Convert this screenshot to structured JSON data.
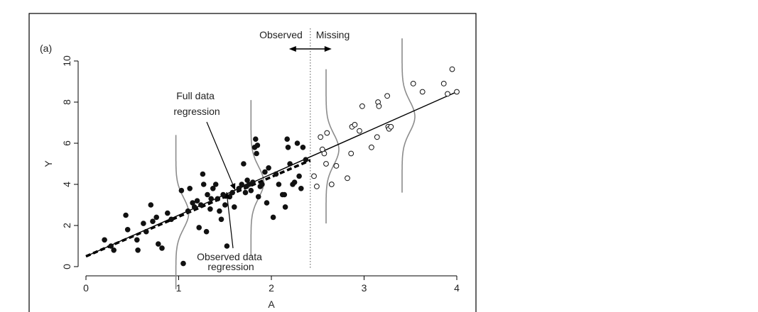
{
  "chart_data": {
    "type": "scatter",
    "panel_label": "(a)",
    "ylabel": "Y",
    "xlabel": "A",
    "xlim": [
      -0.05,
      4.1
    ],
    "ylim": [
      -0.25,
      10.2
    ],
    "x_ticks": [
      0,
      1,
      2,
      3,
      4
    ],
    "y_ticks": [
      0,
      2,
      4,
      6,
      8,
      10
    ],
    "threshold_x": 2.42,
    "region_labels": {
      "observed": "Observed",
      "missing": "Missing"
    },
    "annotations": {
      "full": [
        "Full data",
        "regression"
      ],
      "observed": [
        "Observed data",
        "regression"
      ]
    },
    "full_regression": {
      "intercept": 0.5,
      "slope": 2.0,
      "x_range": [
        0,
        4
      ]
    },
    "observed_regression": {
      "intercept": 0.5,
      "slope": 1.93,
      "x_range": [
        0,
        2.42
      ]
    },
    "density_curves": [
      {
        "x": 0.97,
        "mu": 2.6,
        "sigma": 0.75,
        "y_range": [
          -1.1,
          6.4
        ]
      },
      {
        "x": 1.78,
        "mu": 4.1,
        "sigma": 0.75,
        "y_range": [
          0.5,
          8.1
        ]
      },
      {
        "x": 2.59,
        "mu": 5.7,
        "sigma": 0.75,
        "y_range": [
          2.1,
          9.6
        ]
      },
      {
        "x": 3.41,
        "mu": 7.3,
        "sigma": 0.75,
        "y_range": [
          3.6,
          11.1
        ]
      }
    ],
    "series": [
      {
        "marker": "filled",
        "points": [
          [
            0.2,
            1.3
          ],
          [
            0.27,
            1.0
          ],
          [
            0.3,
            0.8
          ],
          [
            0.43,
            2.5
          ],
          [
            0.45,
            1.8
          ],
          [
            0.55,
            1.3
          ],
          [
            0.56,
            0.8
          ],
          [
            0.62,
            2.1
          ],
          [
            0.65,
            1.7
          ],
          [
            0.7,
            3.0
          ],
          [
            0.72,
            2.2
          ],
          [
            0.76,
            2.4
          ],
          [
            0.78,
            1.1
          ],
          [
            0.82,
            0.9
          ],
          [
            0.88,
            2.6
          ],
          [
            0.92,
            2.3
          ],
          [
            1.03,
            3.7
          ],
          [
            1.05,
            0.15
          ],
          [
            1.1,
            2.7
          ],
          [
            1.12,
            3.8
          ],
          [
            1.15,
            3.1
          ],
          [
            1.17,
            2.9
          ],
          [
            1.2,
            3.2
          ],
          [
            1.22,
            1.9
          ],
          [
            1.24,
            3.0
          ],
          [
            1.26,
            4.5
          ],
          [
            1.27,
            4.0
          ],
          [
            1.3,
            1.7
          ],
          [
            1.31,
            3.5
          ],
          [
            1.34,
            2.8
          ],
          [
            1.35,
            3.3
          ],
          [
            1.37,
            3.8
          ],
          [
            1.4,
            4.0
          ],
          [
            1.42,
            3.3
          ],
          [
            1.44,
            2.7
          ],
          [
            1.46,
            2.3
          ],
          [
            1.48,
            3.5
          ],
          [
            1.5,
            3.0
          ],
          [
            1.52,
            1.0
          ],
          [
            1.55,
            3.4
          ],
          [
            1.58,
            3.6
          ],
          [
            1.6,
            2.9
          ],
          [
            1.65,
            3.8
          ],
          [
            1.68,
            4.0
          ],
          [
            1.7,
            5.0
          ],
          [
            1.72,
            3.6
          ],
          [
            1.73,
            3.9
          ],
          [
            1.74,
            4.2
          ],
          [
            1.76,
            4.0
          ],
          [
            1.78,
            3.7
          ],
          [
            1.8,
            4.1
          ],
          [
            1.82,
            5.8
          ],
          [
            1.83,
            6.2
          ],
          [
            1.84,
            5.5
          ],
          [
            1.85,
            5.9
          ],
          [
            1.86,
            3.4
          ],
          [
            1.88,
            3.9
          ],
          [
            1.9,
            4.0
          ],
          [
            1.93,
            4.6
          ],
          [
            1.95,
            3.1
          ],
          [
            1.97,
            4.8
          ],
          [
            2.02,
            2.4
          ],
          [
            2.05,
            4.5
          ],
          [
            2.08,
            4.0
          ],
          [
            2.12,
            3.5
          ],
          [
            2.14,
            3.5
          ],
          [
            2.15,
            2.9
          ],
          [
            2.17,
            6.2
          ],
          [
            2.18,
            5.8
          ],
          [
            2.2,
            5.0
          ],
          [
            2.23,
            4.0
          ],
          [
            2.25,
            4.1
          ],
          [
            2.28,
            6.0
          ],
          [
            2.3,
            4.4
          ],
          [
            2.32,
            3.8
          ],
          [
            2.34,
            5.8
          ],
          [
            2.37,
            5.2
          ]
        ]
      },
      {
        "marker": "open",
        "points": [
          [
            2.46,
            4.4
          ],
          [
            2.49,
            3.9
          ],
          [
            2.53,
            6.3
          ],
          [
            2.55,
            5.7
          ],
          [
            2.57,
            5.5
          ],
          [
            2.59,
            5.0
          ],
          [
            2.6,
            6.5
          ],
          [
            2.65,
            4.0
          ],
          [
            2.7,
            4.9
          ],
          [
            2.82,
            4.3
          ],
          [
            2.86,
            5.5
          ],
          [
            2.87,
            6.8
          ],
          [
            2.9,
            6.9
          ],
          [
            2.95,
            6.6
          ],
          [
            2.98,
            7.8
          ],
          [
            3.08,
            5.8
          ],
          [
            3.14,
            6.3
          ],
          [
            3.15,
            8.0
          ],
          [
            3.16,
            7.8
          ],
          [
            3.25,
            8.3
          ],
          [
            3.26,
            6.8
          ],
          [
            3.27,
            6.7
          ],
          [
            3.29,
            6.8
          ],
          [
            3.53,
            8.9
          ],
          [
            3.63,
            8.5
          ],
          [
            3.86,
            8.9
          ],
          [
            3.9,
            8.4
          ],
          [
            3.95,
            9.6
          ],
          [
            4.0,
            8.5
          ]
        ]
      }
    ]
  }
}
